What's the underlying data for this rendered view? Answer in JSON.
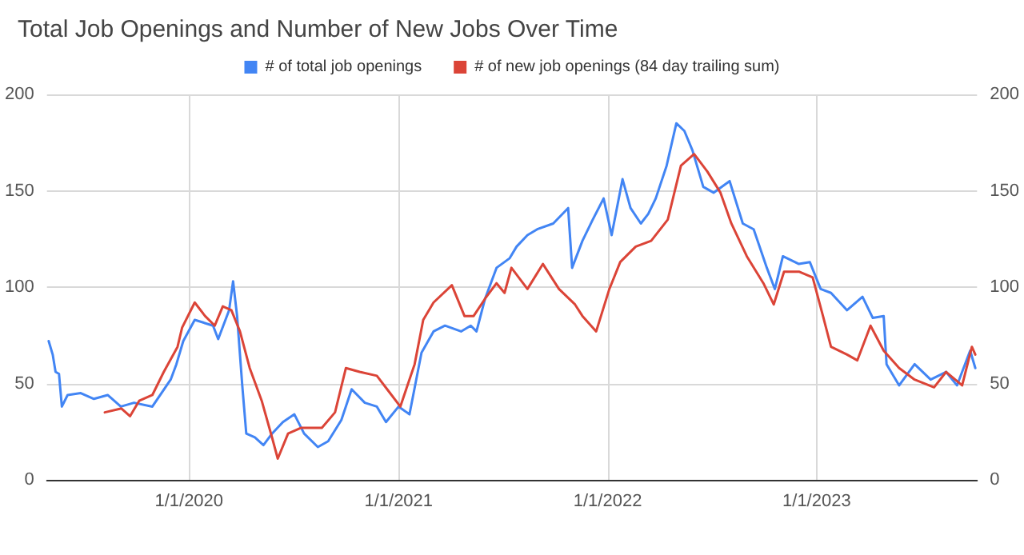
{
  "chart_data": {
    "type": "line",
    "title": "Total Job Openings and Number of New Jobs Over Time",
    "xlim": [
      "2019-04-28",
      "2023-10-08"
    ],
    "xticks": [
      {
        "value": "2020-01-01",
        "label": "1/1/2020"
      },
      {
        "value": "2021-01-01",
        "label": "1/1/2021"
      },
      {
        "value": "2022-01-01",
        "label": "1/1/2022"
      },
      {
        "value": "2023-01-01",
        "label": "1/1/2023"
      }
    ],
    "ylim": [
      0,
      200
    ],
    "yticks": [
      0,
      50,
      100,
      150,
      200
    ],
    "y2lim": [
      0,
      200
    ],
    "y2ticks": [
      0,
      50,
      100,
      150,
      200
    ],
    "grid": true,
    "legend": "top",
    "marker": "none",
    "line_style": "solid",
    "series": [
      {
        "name": "# of total job openings",
        "color": "#4285f4",
        "x": [
          "2019-05-01",
          "2019-05-08",
          "2019-05-13",
          "2019-05-19",
          "2019-05-24",
          "2019-06-03",
          "2019-06-26",
          "2019-07-19",
          "2019-08-12",
          "2019-09-04",
          "2019-09-27",
          "2019-10-29",
          "2019-11-30",
          "2019-12-10",
          "2019-12-22",
          "2020-01-11",
          "2020-02-12",
          "2020-02-21",
          "2020-03-11",
          "2020-03-18",
          "2020-03-25",
          "2020-04-03",
          "2020-04-10",
          "2020-04-25",
          "2020-05-10",
          "2020-05-25",
          "2020-06-13",
          "2020-07-03",
          "2020-07-20",
          "2020-08-13",
          "2020-08-31",
          "2020-09-23",
          "2020-10-11",
          "2020-11-03",
          "2020-11-24",
          "2020-12-10",
          "2021-01-01",
          "2021-01-20",
          "2021-02-10",
          "2021-03-03",
          "2021-03-23",
          "2021-04-20",
          "2021-05-07",
          "2021-05-17",
          "2021-06-01",
          "2021-06-21",
          "2021-07-14",
          "2021-07-26",
          "2021-08-14",
          "2021-08-31",
          "2021-09-28",
          "2021-10-24",
          "2021-10-31",
          "2021-11-18",
          "2021-12-06",
          "2021-12-25",
          "2022-01-08",
          "2022-01-27",
          "2022-02-10",
          "2022-02-28",
          "2022-03-13",
          "2022-03-26",
          "2022-04-14",
          "2022-05-01",
          "2022-05-15",
          "2022-05-29",
          "2022-06-17",
          "2022-07-05",
          "2022-08-02",
          "2022-08-25",
          "2022-09-13",
          "2022-10-06",
          "2022-10-20",
          "2022-11-03",
          "2022-12-01",
          "2022-12-20",
          "2023-01-08",
          "2023-01-26",
          "2023-02-23",
          "2023-03-22",
          "2023-04-09",
          "2023-04-28",
          "2023-05-03",
          "2023-05-25",
          "2023-06-21",
          "2023-07-19",
          "2023-08-15",
          "2023-09-03",
          "2023-09-26",
          "2023-10-05"
        ],
        "values": [
          72,
          65,
          56,
          55,
          38,
          44,
          45,
          42,
          44,
          38,
          40,
          38,
          52,
          60,
          72,
          83,
          80,
          73,
          88,
          103,
          85,
          49,
          24,
          22,
          18,
          24,
          30,
          34,
          24,
          17,
          20,
          31,
          47,
          40,
          38,
          30,
          38,
          34,
          66,
          77,
          80,
          77,
          80,
          77,
          94,
          110,
          115,
          121,
          127,
          130,
          133,
          141,
          110,
          124,
          135,
          146,
          127,
          156,
          141,
          133,
          138,
          146,
          163,
          185,
          181,
          171,
          152,
          149,
          155,
          133,
          130,
          110,
          99,
          116,
          112,
          113,
          99,
          97,
          88,
          95,
          84,
          85,
          60,
          49,
          60,
          52,
          56,
          49,
          67,
          58
        ]
      },
      {
        "name": "# of new job openings (84 day trailing sum)",
        "color": "#db4437",
        "x": [
          "2019-08-07",
          "2019-09-05",
          "2019-09-20",
          "2019-10-06",
          "2019-10-29",
          "2019-11-18",
          "2019-12-12",
          "2019-12-20",
          "2020-01-11",
          "2020-01-29",
          "2020-02-15",
          "2020-02-29",
          "2020-03-15",
          "2020-03-30",
          "2020-04-16",
          "2020-05-07",
          "2020-05-25",
          "2020-06-04",
          "2020-06-22",
          "2020-07-15",
          "2020-08-20",
          "2020-09-12",
          "2020-10-01",
          "2020-10-25",
          "2020-11-24",
          "2020-12-12",
          "2021-01-04",
          "2021-01-29",
          "2021-02-13",
          "2021-03-03",
          "2021-04-04",
          "2021-04-26",
          "2021-05-12",
          "2021-06-01",
          "2021-06-21",
          "2021-07-05",
          "2021-07-17",
          "2021-08-14",
          "2021-09-10",
          "2021-10-08",
          "2021-11-05",
          "2021-11-18",
          "2021-12-12",
          "2022-01-04",
          "2022-01-23",
          "2022-02-19",
          "2022-03-18",
          "2022-04-16",
          "2022-05-09",
          "2022-06-01",
          "2022-06-24",
          "2022-07-17",
          "2022-08-05",
          "2022-09-01",
          "2022-09-30",
          "2022-10-18",
          "2022-11-05",
          "2022-12-01",
          "2022-12-25",
          "2023-01-12",
          "2023-01-26",
          "2023-02-23",
          "2023-03-13",
          "2023-04-05",
          "2023-04-28",
          "2023-05-25",
          "2023-06-21",
          "2023-07-25",
          "2023-08-15",
          "2023-09-12",
          "2023-09-29",
          "2023-10-05"
        ],
        "values": [
          35,
          37,
          33,
          41,
          44,
          56,
          69,
          79,
          92,
          85,
          80,
          90,
          88,
          77,
          58,
          41,
          22,
          11,
          24,
          27,
          27,
          35,
          58,
          56,
          54,
          47,
          38,
          60,
          83,
          92,
          101,
          85,
          85,
          94,
          102,
          97,
          110,
          99,
          112,
          99,
          91,
          85,
          77,
          99,
          113,
          121,
          124,
          135,
          163,
          169,
          160,
          149,
          133,
          116,
          102,
          91,
          108,
          108,
          105,
          85,
          69,
          65,
          62,
          80,
          67,
          58,
          52,
          48,
          56,
          49,
          69,
          65
        ]
      }
    ]
  }
}
